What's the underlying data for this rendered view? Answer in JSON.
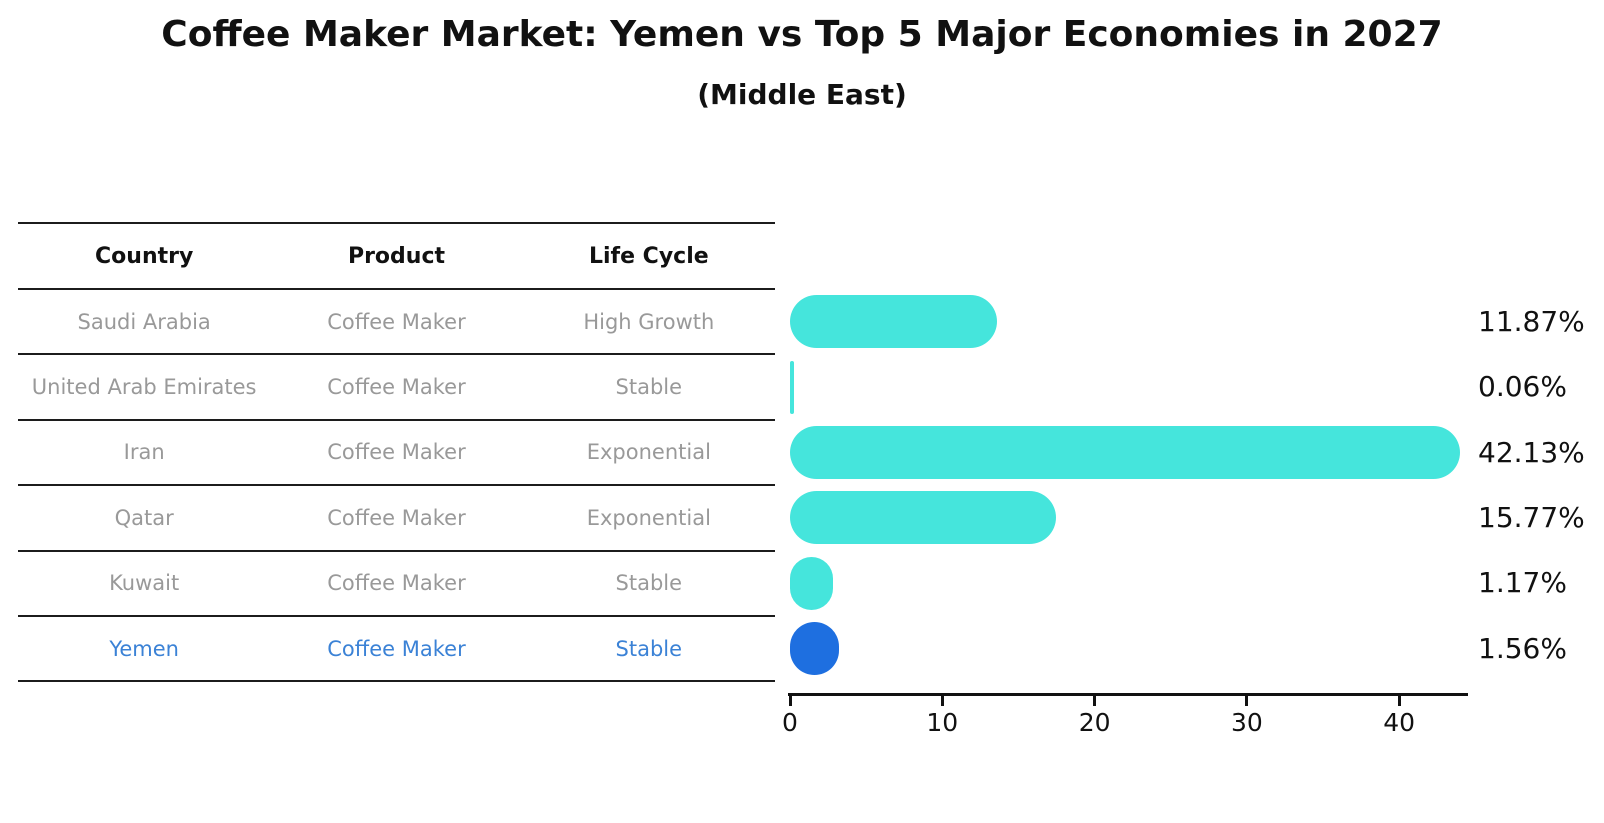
{
  "title": "Coffee Maker Market: Yemen vs Top 5 Major Economies in 2027",
  "subtitle": "(Middle East)",
  "table": {
    "headers": [
      "Country",
      "Product",
      "Life Cycle"
    ],
    "rows": [
      {
        "country": "Saudi Arabia",
        "product": "Coffee Maker",
        "life_cycle": "High Growth",
        "highlighted": false
      },
      {
        "country": "United Arab Emirates",
        "product": "Coffee Maker",
        "life_cycle": "Stable",
        "highlighted": false
      },
      {
        "country": "Iran",
        "product": "Coffee Maker",
        "life_cycle": "Exponential",
        "highlighted": false
      },
      {
        "country": "Qatar",
        "product": "Coffee Maker",
        "life_cycle": "Exponential",
        "highlighted": false
      },
      {
        "country": "Kuwait",
        "product": "Coffee Maker",
        "life_cycle": "Stable",
        "highlighted": false
      },
      {
        "country": "Yemen",
        "product": "Coffee Maker",
        "life_cycle": "Stable",
        "highlighted": true
      }
    ]
  },
  "chart_data": {
    "type": "bar",
    "orientation": "horizontal",
    "title": "Coffee Maker Market: Yemen vs Top 5 Major Economies in 2027 (Middle East)",
    "categories": [
      "Saudi Arabia",
      "United Arab Emirates",
      "Iran",
      "Qatar",
      "Kuwait",
      "Yemen"
    ],
    "values": [
      11.87,
      0.06,
      42.13,
      15.77,
      1.17,
      1.56
    ],
    "value_labels": [
      "11.87%",
      "0.06%",
      "42.13%",
      "15.77%",
      "1.17%",
      "1.56%"
    ],
    "xlabel": "",
    "ylabel": "",
    "xlim": [
      0,
      44.5
    ],
    "xticks": [
      0,
      10,
      20,
      30,
      40
    ],
    "xtick_labels": [
      "0",
      "10",
      "20",
      "30",
      "40"
    ],
    "grid": false,
    "legend": false,
    "bar_color": "#45E5DC",
    "highlight_color": "#1E6FE0",
    "highlight_category": "Yemen"
  },
  "colors": {
    "bar_cyan": "#45E5DC",
    "bar_blue": "#1E6FE0",
    "highlight_text_blue": "#3b82d6",
    "table_text_gray": "#999999",
    "text_black": "#111111"
  }
}
